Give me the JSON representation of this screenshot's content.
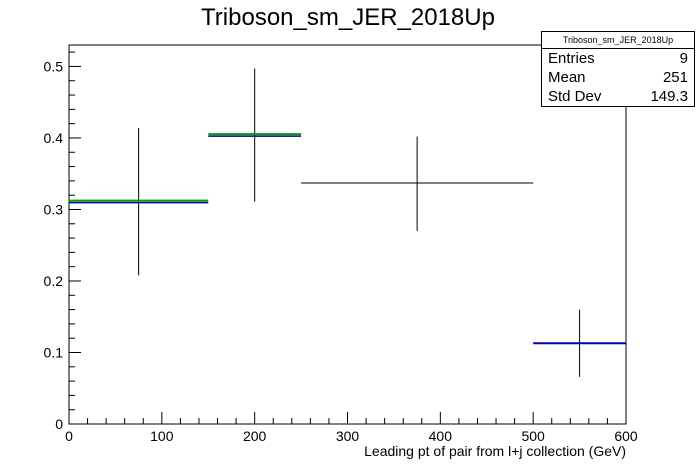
{
  "title": "Triboson_sm_JER_2018Up",
  "stats": {
    "name": "Triboson_sm_JER_2018Up",
    "rows": [
      {
        "label": "Entries",
        "value": "9"
      },
      {
        "label": "Mean",
        "value": "251"
      },
      {
        "label": "Std Dev",
        "value": "149.3"
      }
    ]
  },
  "chart_data": {
    "type": "histogram",
    "title": "Triboson_sm_JER_2018Up",
    "xlabel": "Leading pt of pair from l+j collection (GeV)",
    "ylabel": "",
    "xlim": [
      0,
      600
    ],
    "ylim": [
      0,
      0.53
    ],
    "xticks": [
      0,
      100,
      200,
      300,
      400,
      500,
      600
    ],
    "yticks": [
      0,
      0.1,
      0.2,
      0.3,
      0.4,
      0.5
    ],
    "bins": [
      {
        "xlow": 0,
        "xhigh": 150,
        "y": 0.311,
        "yerr_low": 0.103,
        "yerr_high": 0.103,
        "style": "green-blue"
      },
      {
        "xlow": 150,
        "xhigh": 250,
        "y": 0.404,
        "yerr_low": 0.093,
        "yerr_high": 0.093,
        "style": "green-blue"
      },
      {
        "xlow": 250,
        "xhigh": 500,
        "y": 0.337,
        "yerr_low": 0.067,
        "yerr_high": 0.065,
        "style": "black"
      },
      {
        "xlow": 500,
        "xhigh": 600,
        "y": 0.113,
        "yerr_low": 0.047,
        "yerr_high": 0.047,
        "style": "blue"
      }
    ],
    "colors": {
      "green": "#00a000",
      "blue": "#0000a0",
      "black": "#000000"
    }
  }
}
